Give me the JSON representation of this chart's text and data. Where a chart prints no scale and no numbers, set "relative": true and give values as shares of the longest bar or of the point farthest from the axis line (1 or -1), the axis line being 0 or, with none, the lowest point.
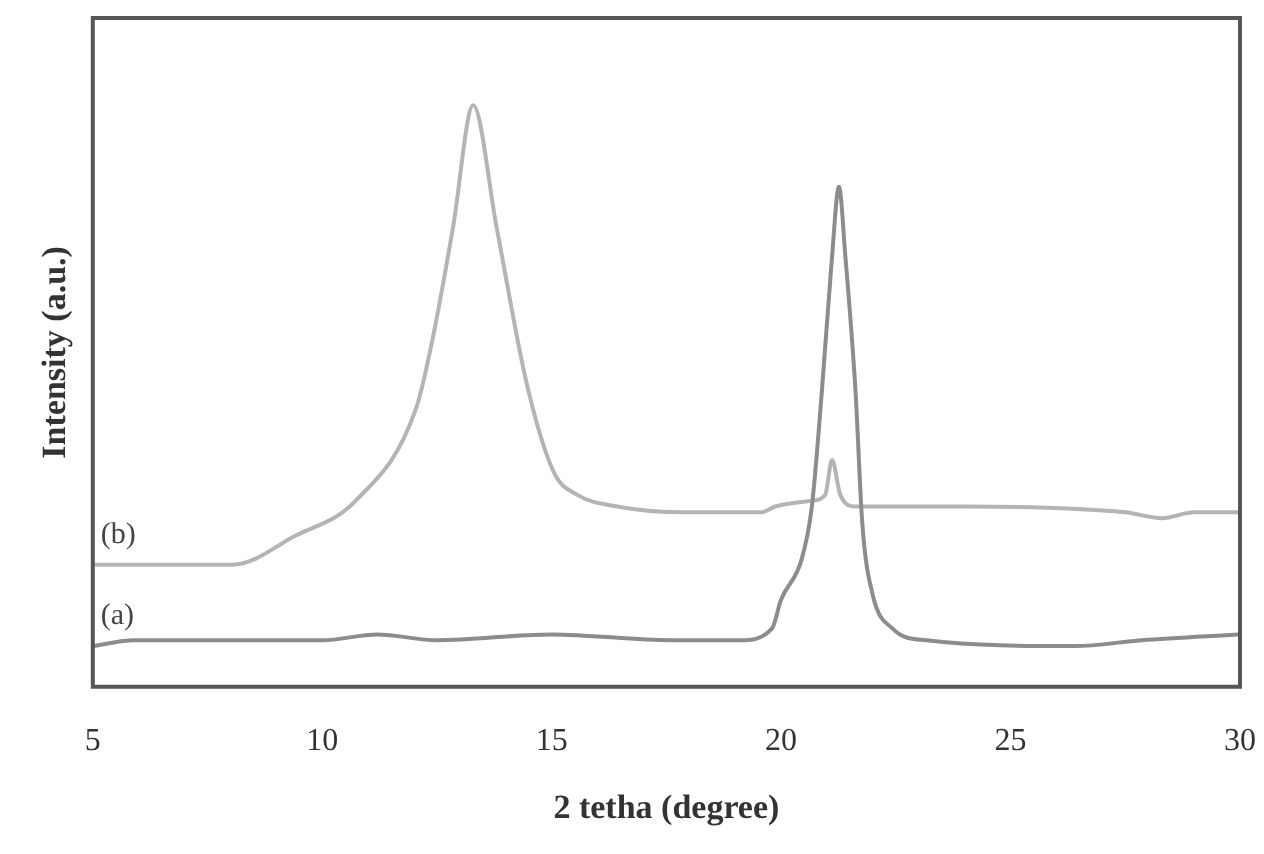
{
  "chart_data": {
    "type": "line",
    "xlabel": "2 tetha (degree)",
    "ylabel": "Intensity (a.u.)",
    "relative": true,
    "xlim": [
      5,
      30
    ],
    "xticks": [
      5,
      10,
      15,
      20,
      25,
      30
    ],
    "marker": "none",
    "series": [
      {
        "name": "(a)",
        "color": "#8c8c8c",
        "x": [
          5,
          5.9,
          10,
          11.2,
          12.5,
          15,
          17.6,
          19.1,
          19.8,
          20.0,
          20.45,
          20.67,
          20.89,
          21.11,
          21.26,
          21.4,
          21.62,
          21.77,
          21.99,
          22.43,
          23.16,
          26.4,
          27.85,
          30
        ],
        "values": [
          0.07,
          0.08,
          0.08,
          0.09,
          0.08,
          0.09,
          0.08,
          0.08,
          0.1,
          0.15,
          0.22,
          0.31,
          0.51,
          0.74,
          0.86,
          0.74,
          0.51,
          0.28,
          0.16,
          0.1,
          0.08,
          0.07,
          0.08,
          0.09
        ]
      },
      {
        "name": "(b)",
        "color": "#b4b4b4",
        "x": [
          5,
          8.05,
          9.42,
          10.73,
          12.05,
          12.41,
          12.85,
          13.29,
          13.8,
          14.46,
          15.04,
          15.56,
          16.43,
          17.9,
          19.57,
          19.87,
          20.67,
          20.96,
          21.11,
          21.29,
          21.62,
          21.92,
          24,
          27.5,
          28.3,
          29,
          30
        ],
        "values": [
          0.21,
          0.21,
          0.26,
          0.32,
          0.48,
          0.6,
          0.79,
          1,
          0.79,
          0.52,
          0.37,
          0.33,
          0.31,
          0.3,
          0.3,
          0.31,
          0.32,
          0.33,
          0.39,
          0.33,
          0.31,
          0.31,
          0.31,
          0.3,
          0.29,
          0.3,
          0.3
        ]
      }
    ]
  }
}
